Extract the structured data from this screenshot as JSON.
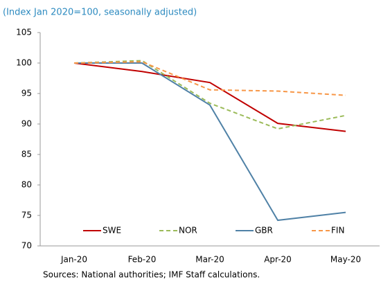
{
  "chart_data": {
    "type": "line",
    "subtitle": "(Index Jan 2020=100, seasonally adjusted)",
    "categories": [
      "Jan-20",
      "Feb-20",
      "Mar-20",
      "Apr-20",
      "May-20"
    ],
    "series": [
      {
        "name": "SWE",
        "color": "#c00000",
        "dash": "solid",
        "values": [
          100,
          98.6,
          96.8,
          90.1,
          88.8
        ]
      },
      {
        "name": "NOR",
        "color": "#9bbb59",
        "dash": "dashed",
        "values": [
          100,
          100.4,
          93.4,
          89.2,
          91.4
        ]
      },
      {
        "name": "GBR",
        "color": "#4f81a6",
        "dash": "solid",
        "values": [
          100,
          100,
          93.1,
          74.2,
          75.5
        ]
      },
      {
        "name": "FIN",
        "color": "#f79646",
        "dash": "dashed",
        "values": [
          100,
          100.2,
          95.6,
          95.4,
          94.7
        ]
      }
    ],
    "ylim": [
      70,
      105
    ],
    "yticks": [
      70,
      75,
      80,
      85,
      90,
      95,
      100,
      105
    ],
    "grid": false,
    "legend": "bottom",
    "source": "Sources: National authorities; IMF Staff calculations."
  }
}
